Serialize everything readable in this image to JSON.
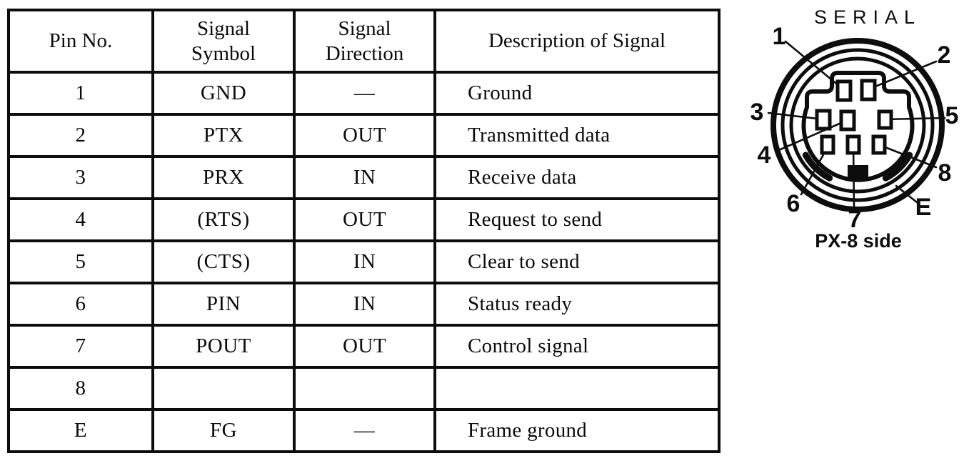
{
  "page": {
    "background": "#ffffff",
    "ink": "#0c0c0c"
  },
  "table": {
    "headers": [
      "Pin No.",
      "Signal\nSymbol",
      "Signal\nDirection",
      "Description of Signal"
    ],
    "rows": [
      {
        "pin": "1",
        "symbol": "GND",
        "direction": "—",
        "description": "Ground"
      },
      {
        "pin": "2",
        "symbol": "PTX",
        "direction": "OUT",
        "description": "Transmitted data"
      },
      {
        "pin": "3",
        "symbol": "PRX",
        "direction": "IN",
        "description": "Receive data"
      },
      {
        "pin": "4",
        "symbol": "(RTS)",
        "direction": "OUT",
        "description": "Request to send"
      },
      {
        "pin": "5",
        "symbol": "(CTS)",
        "direction": "IN",
        "description": "Clear to send"
      },
      {
        "pin": "6",
        "symbol": "PIN",
        "direction": "IN",
        "description": "Status ready"
      },
      {
        "pin": "7",
        "symbol": "POUT",
        "direction": "OUT",
        "description": "Control signal"
      },
      {
        "pin": "8",
        "symbol": "",
        "direction": "",
        "description": ""
      },
      {
        "pin": "E",
        "symbol": "FG",
        "direction": "—",
        "description": "Frame ground"
      }
    ]
  },
  "diagram": {
    "title": "SERIAL",
    "caption": "PX-8 side",
    "pin_labels": [
      "1",
      "2",
      "3",
      "4",
      "5",
      "6",
      "7",
      "8",
      "E"
    ]
  }
}
